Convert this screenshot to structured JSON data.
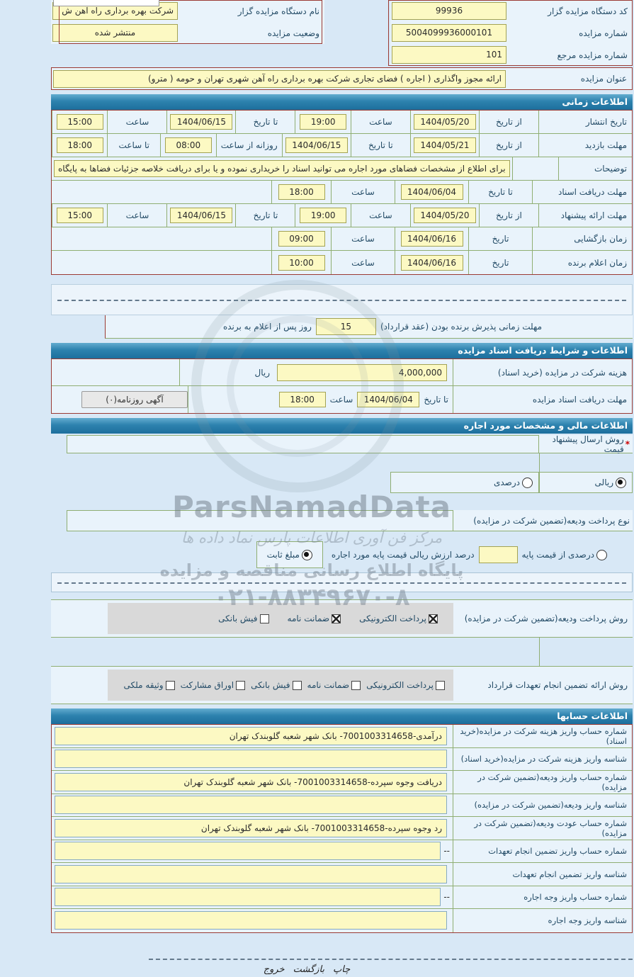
{
  "colors": {
    "header_blue": "#2d82ae",
    "field_yellow": "#fcf9c3",
    "frame_maroon": "#9b3a33",
    "grid_green": "#8fae72"
  },
  "header": {
    "device_code_label": "کد دستگاه مزایده گزار",
    "device_code": "99936",
    "device_name_label": "نام دستگاه مزایده گزار",
    "device_name": "شرکت بهره برداری راه آهن ش",
    "auction_no_label": "شماره مزایده",
    "auction_no": "5004099936000101",
    "status_label": "وضعیت مزایده",
    "status": "منتشر شده",
    "ref_no_label": "شماره مزایده مرجع",
    "ref_no": "101",
    "title_label": "عنوان مزایده",
    "title": "ارائه مجوز واگذاری ( اجاره ) فضای تجاری شرکت بهره برداری راه آهن شهری تهران و حومه ( مترو)"
  },
  "sections": {
    "time": "اطلاعات زمانی",
    "docs": "اطلاعات و شرایط دریافت اسناد مزایده",
    "financial": "اطلاعات مالی و مشخصات مورد اجاره",
    "accounts": "اطلاعات حسابها"
  },
  "time": {
    "publish": {
      "label": "تاریخ انتشار",
      "p1": "از تاریخ",
      "v1": "1404/05/20",
      "p2": "ساعت",
      "v2": "19:00",
      "p3": "تا تاریخ",
      "v3": "1404/06/15",
      "p4": "ساعت",
      "v4": "15:00"
    },
    "visit": {
      "label": "مهلت بازدید",
      "p1": "از تاریخ",
      "v1": "1404/05/21",
      "p2": "تا تاریخ",
      "v2": "1404/06/15",
      "p3": "روزانه از ساعت",
      "v3": "08:00",
      "p4": "تا ساعت",
      "v4": "18:00"
    },
    "notes": {
      "label": "توضیحات",
      "value": "برای اطلاع از مشخصات فضاهای مورد اجاره می توانید اسناد را خریداری نموده و یا برای دریافت خلاصه جزئیات فضاها به پایگاه"
    },
    "doc_deadline": {
      "label": "مهلت دریافت اسناد",
      "p1": "تا تاریخ",
      "v1": "1404/06/04",
      "p2": "ساعت",
      "v2": "18:00"
    },
    "offer": {
      "label": "مهلت ارائه پیشنهاد",
      "p1": "از تاریخ",
      "v1": "1404/05/20",
      "p2": "ساعت",
      "v2": "19:00",
      "p3": "تا تاریخ",
      "v3": "1404/06/15",
      "p4": "ساعت",
      "v4": "15:00"
    },
    "opening": {
      "label": "زمان بازگشایی",
      "p1": "تاریخ",
      "v1": "1404/06/16",
      "p2": "ساعت",
      "v2": "09:00"
    },
    "winner": {
      "label": "زمان اعلام برنده",
      "p1": "تاریخ",
      "v1": "1404/06/16",
      "p2": "ساعت",
      "v2": "10:00"
    },
    "accept": {
      "label": "مهلت زمانی پذیرش برنده بودن (عقد قرارداد)",
      "value": "15",
      "suffix": "روز پس از اعلام به برنده"
    }
  },
  "docs": {
    "fee_label": "هزینه شرکت در مزایده (خرید اسناد)",
    "fee": "4,000,000",
    "fee_unit": "ریال",
    "deadline_label": "مهلت دریافت اسناد مزایده",
    "deadline_p1": "تا تاریخ",
    "deadline_date": "1404/06/04",
    "deadline_p2": "ساعت",
    "deadline_time": "18:00",
    "newspaper_button": "آگهی روزنامه(۰)"
  },
  "financial": {
    "required_mark": "*",
    "send_method_label": "روش ارسال پیشنهاد قیمت",
    "rial": {
      "label": "ریالی",
      "selected": true
    },
    "percent": {
      "label": "درصدی",
      "selected": false
    },
    "deposit_type_label": "نوع پرداخت ودیعه(تضمین شرکت در مزایده)",
    "deposit_pct": {
      "label": "درصدی از قیمت پایه",
      "selected": false,
      "desc": "درصد ارزش ریالی قیمت پایه مورد اجاره",
      "input_value": ""
    },
    "deposit_fixed": {
      "label": "مبلغ ثابت",
      "selected": true
    },
    "deposit_method_label": "روش پرداخت ودیعه(تضمین شرکت در مزایده)",
    "deposit_options": [
      {
        "label": "پرداخت الکترونیکی",
        "checked": true
      },
      {
        "label": "ضمانت نامه",
        "checked": true
      },
      {
        "label": "فیش بانکی",
        "checked": false
      }
    ],
    "guarantee_label": "روش ارائه تضمین انجام تعهدات قرارداد",
    "guarantee_options": [
      {
        "label": "پرداخت الکترونیکی",
        "checked": false
      },
      {
        "label": "ضمانت نامه",
        "checked": false
      },
      {
        "label": "فیش بانکی",
        "checked": false
      },
      {
        "label": "اوراق مشارکت",
        "checked": false
      },
      {
        "label": "وثیقه ملکی",
        "checked": false
      }
    ]
  },
  "accounts": {
    "rows": [
      {
        "label": "شماره حساب واریز هزینه شرکت در مزایده(خرید اسناد)",
        "prefix": "",
        "value": "درآمدی-7001003314658- بانک شهر شعبه گلوبندک تهران"
      },
      {
        "label": "شناسه واریز هزینه شرکت در مزایده(خرید اسناد)",
        "prefix": "",
        "value": ""
      },
      {
        "label": "شماره حساب واریز ودیعه(تضمین شرکت در مزایده)",
        "prefix": "",
        "value": "دریافت وجوه سپرده-7001003314658- بانک شهر شعبه گلوبندک تهران"
      },
      {
        "label": "شناسه واریز ودیعه(تضمین شرکت در مزایده)",
        "prefix": "",
        "value": ""
      },
      {
        "label": "شماره حساب عودت ودیعه(تضمین شرکت در مزایده)",
        "prefix": "",
        "value": "رد وجوه سپرده-7001003314658- بانک شهر شعبه گلوبندک تهران"
      },
      {
        "label": "شماره حساب واریز تضمین انجام تعهدات",
        "prefix": "--",
        "value": ""
      },
      {
        "label": "شناسه واریز تضمین انجام تعهدات",
        "prefix": "",
        "value": ""
      },
      {
        "label": "شماره حساب واریز وجه اجاره",
        "prefix": "--",
        "value": ""
      },
      {
        "label": "شناسه واریز وجه اجاره",
        "prefix": "",
        "value": ""
      }
    ]
  },
  "footer": {
    "print": "چاپ",
    "back": "بازگشت",
    "exit": "خروج"
  },
  "watermark": {
    "brand": "ParsNamadData",
    "line1": "مرکز فن آوری اطلاعات پارس نماد داده ها",
    "line2": "پایگاه اطلاع رسانی مناقصه و مزایده",
    "phone": "۰۲۱-۸۸۳۴۹۶۷۰-۸"
  }
}
